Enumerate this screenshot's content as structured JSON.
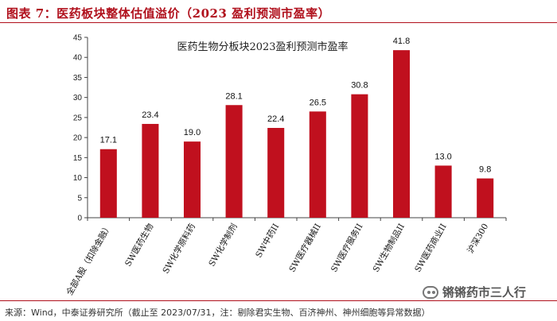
{
  "figure": {
    "title": "图表 7：医药板块整体估值溢价（2023 盈利预测市盈率）",
    "source": "来源：Wind，中泰证券研究所（截止至 2023/07/31，注：剔除君实生物、百济神州、神州细胞等异常数据）",
    "watermark": "锵锵药市三人行",
    "accent_color": "#b0101c",
    "bar_color": "#c0101e"
  },
  "chart_data": {
    "type": "bar",
    "title": "医药生物分板块2023盈利预测市盈率",
    "categories": [
      "全部A股（扣除金融）",
      "SW医药生物",
      "SW化学原料药",
      "SW化学制剂",
      "SW中药II",
      "SW医疗器械II",
      "SW医疗服务II",
      "SW生物制品II",
      "SW医药商业II",
      "沪深300"
    ],
    "values": [
      17.1,
      23.4,
      19.0,
      28.1,
      22.4,
      26.5,
      30.8,
      41.8,
      13.0,
      9.8
    ],
    "value_labels": [
      "17.1",
      "23.4",
      "19.0",
      "28.1",
      "22.4",
      "26.5",
      "30.8",
      "41.8",
      "13.0",
      "9.8"
    ],
    "yticks": [
      "0",
      "5",
      "10",
      "15",
      "20",
      "25",
      "30",
      "35",
      "40",
      "45"
    ],
    "ylim": [
      0,
      45
    ],
    "xlabel": "",
    "ylabel": "",
    "grid": false,
    "legend": "none"
  }
}
